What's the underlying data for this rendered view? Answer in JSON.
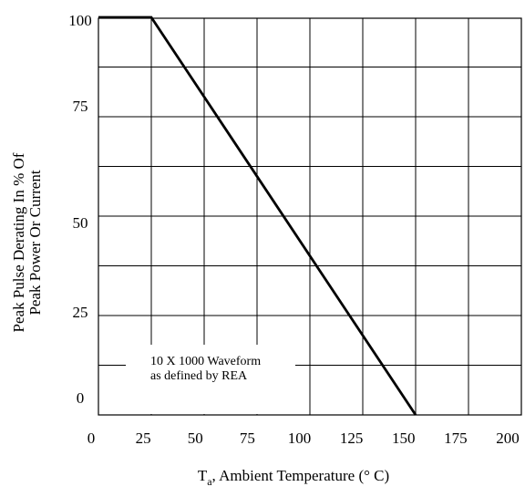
{
  "chart_data": {
    "type": "line",
    "title": "",
    "xlabel_main": "T",
    "xlabel_sub": "a",
    "xlabel_rest": ", Ambient Temperature (° C)",
    "ylabel_line1": "Peak Pulse Derating In % Of",
    "ylabel_line2": "Peak Power Or Current",
    "xlim": [
      0,
      200
    ],
    "ylim": [
      0,
      100
    ],
    "x_ticks": [
      0,
      25,
      50,
      75,
      100,
      125,
      150,
      175,
      200
    ],
    "x_tick_labels": [
      "0",
      "25",
      "50",
      "75",
      "100",
      "125",
      "150",
      "175",
      "200"
    ],
    "y_ticks": [
      0,
      25,
      50,
      75,
      100
    ],
    "y_tick_labels": [
      "0",
      "25",
      "50",
      "75",
      "100"
    ],
    "grid": true,
    "series": [
      {
        "x": [
          0,
          25,
          150
        ],
        "y": [
          100,
          100,
          0
        ]
      }
    ],
    "annotation_line1": "10 X 1000 Waveform",
    "annotation_line2": "as defined by REA"
  }
}
